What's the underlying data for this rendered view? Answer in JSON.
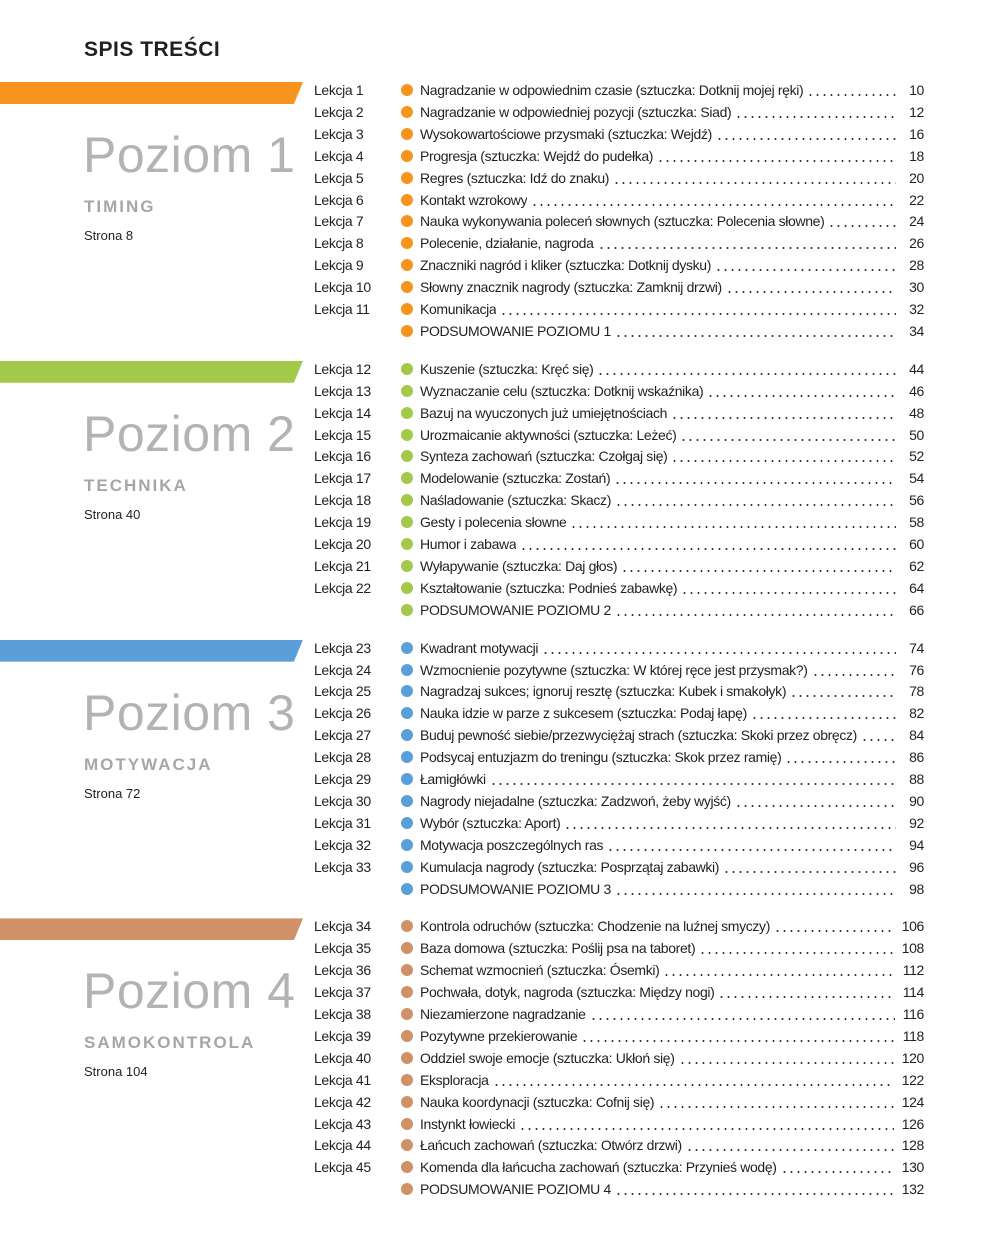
{
  "title": "SPIS TREŚCI",
  "sections": [
    {
      "level": "Poziom 1",
      "subtitle": "TIMING",
      "start": "Strona 8",
      "color": "#f7941d",
      "entries": [
        {
          "lesson": "Lekcja 1",
          "title": "Nagradzanie w odpowiednim czasie (sztuczka: Dotknij mojej ręki)",
          "page": 10
        },
        {
          "lesson": "Lekcja 2",
          "title": "Nagradzanie w odpowiedniej pozycji (sztuczka: Siad)",
          "page": 12
        },
        {
          "lesson": "Lekcja 3",
          "title": "Wysokowartościowe przysmaki (sztuczka: Wejdź)",
          "page": 16
        },
        {
          "lesson": "Lekcja 4",
          "title": "Progresja (sztuczka: Wejdź do pudełka)",
          "page": 18
        },
        {
          "lesson": "Lekcja 5",
          "title": "Regres (sztuczka: Idź do znaku)",
          "page": 20
        },
        {
          "lesson": "Lekcja 6",
          "title": "Kontakt wzrokowy",
          "page": 22
        },
        {
          "lesson": "Lekcja 7",
          "title": "Nauka wykonywania poleceń słownych (sztuczka: Polecenia słowne)",
          "page": 24
        },
        {
          "lesson": "Lekcja 8",
          "title": "Polecenie, działanie, nagroda",
          "page": 26
        },
        {
          "lesson": "Lekcja 9",
          "title": "Znaczniki nagród i kliker (sztuczka: Dotknij dysku)",
          "page": 28
        },
        {
          "lesson": "Lekcja 10",
          "title": "Słowny znacznik nagrody (sztuczka: Zamknij drzwi)",
          "page": 30
        },
        {
          "lesson": "Lekcja 11",
          "title": "Komunikacja",
          "page": 32
        },
        {
          "title": "PODSUMOWANIE POZIOMU 1",
          "page": 34
        }
      ]
    },
    {
      "level": "Poziom 2",
      "subtitle": "TECHNIKA",
      "start": "Strona 40",
      "color": "#a3c94a",
      "entries": [
        {
          "lesson": "Lekcja 12",
          "title": "Kuszenie (sztuczka: Kręć się)",
          "page": 44
        },
        {
          "lesson": "Lekcja 13",
          "title": "Wyznaczanie celu (sztuczka: Dotknij wskaźnika)",
          "page": 46
        },
        {
          "lesson": "Lekcja 14",
          "title": "Bazuj na wyuczonych już umiejętnościach",
          "page": 48
        },
        {
          "lesson": "Lekcja 15",
          "title": "Urozmaicanie aktywności (sztuczka: Leżeć)",
          "page": 50
        },
        {
          "lesson": "Lekcja 16",
          "title": "Synteza zachowań (sztuczka: Czołgaj się)",
          "page": 52
        },
        {
          "lesson": "Lekcja 17",
          "title": "Modelowanie (sztuczka: Zostań)",
          "page": 54
        },
        {
          "lesson": "Lekcja 18",
          "title": "Naśladowanie (sztuczka: Skacz)",
          "page": 56
        },
        {
          "lesson": "Lekcja 19",
          "title": "Gesty i polecenia słowne",
          "page": 58
        },
        {
          "lesson": "Lekcja 20",
          "title": "Humor i zabawa",
          "page": 60
        },
        {
          "lesson": "Lekcja 21",
          "title": "Wyłapywanie (sztuczka: Daj głos)",
          "page": 62
        },
        {
          "lesson": "Lekcja 22",
          "title": "Kształtowanie (sztuczka: Podnieś zabawkę)",
          "page": 64
        },
        {
          "title": "PODSUMOWANIE POZIOMU 2",
          "page": 66
        }
      ]
    },
    {
      "level": "Poziom 3",
      "subtitle": "MOTYWACJA",
      "start": "Strona 72",
      "color": "#5b9fd8",
      "entries": [
        {
          "lesson": "Lekcja 23",
          "title": "Kwadrant motywacji",
          "page": 74
        },
        {
          "lesson": "Lekcja 24",
          "title": "Wzmocnienie pozytywne (sztuczka: W której ręce jest przysmak?)",
          "page": 76
        },
        {
          "lesson": "Lekcja 25",
          "title": "Nagradzaj sukces; ignoruj resztę (sztuczka: Kubek i smakołyk)",
          "page": 78
        },
        {
          "lesson": "Lekcja 26",
          "title": "Nauka idzie w parze z sukcesem (sztuczka: Podaj łapę)",
          "page": 82
        },
        {
          "lesson": "Lekcja 27",
          "title": "Buduj pewność siebie/przezwyciężaj strach (sztuczka: Skoki przez obręcz)",
          "page": 84
        },
        {
          "lesson": "Lekcja 28",
          "title": "Podsycaj entuzjazm do treningu (sztuczka: Skok przez ramię)",
          "page": 86
        },
        {
          "lesson": "Lekcja 29",
          "title": "Łamigłówki",
          "page": 88
        },
        {
          "lesson": "Lekcja 30",
          "title": "Nagrody niejadalne (sztuczka: Zadzwoń, żeby wyjść)",
          "page": 90
        },
        {
          "lesson": "Lekcja 31",
          "title": "Wybór (sztuczka: Aport)",
          "page": 92
        },
        {
          "lesson": "Lekcja 32",
          "title": "Motywacja poszczególnych ras",
          "page": 94
        },
        {
          "lesson": "Lekcja 33",
          "title": "Kumulacja nagrody (sztuczka: Posprzątaj zabawki)",
          "page": 96
        },
        {
          "title": "PODSUMOWANIE POZIOMU 3",
          "page": 98
        }
      ]
    },
    {
      "level": "Poziom 4",
      "subtitle": "SAMOKONTROLA",
      "start": "Strona 104",
      "color": "#cf9166",
      "entries": [
        {
          "lesson": "Lekcja 34",
          "title": "Kontrola odruchów (sztuczka: Chodzenie na luźnej smyczy)",
          "page": 106
        },
        {
          "lesson": "Lekcja 35",
          "title": "Baza domowa (sztuczka: Poślij psa na taboret)",
          "page": 108
        },
        {
          "lesson": "Lekcja 36",
          "title": "Schemat wzmocnień (sztuczka: Ósemki)",
          "page": 112
        },
        {
          "lesson": "Lekcja 37",
          "title": "Pochwała, dotyk, nagroda (sztuczka: Między nogi)",
          "page": 114
        },
        {
          "lesson": "Lekcja 38",
          "title": "Niezamierzone nagradzanie",
          "page": 116
        },
        {
          "lesson": "Lekcja 39",
          "title": "Pozytywne przekierowanie",
          "page": 118
        },
        {
          "lesson": "Lekcja 40",
          "title": "Oddziel swoje emocje (sztuczka: Ukłoń się)",
          "page": 120
        },
        {
          "lesson": "Lekcja 41",
          "title": "Eksploracja",
          "page": 122
        },
        {
          "lesson": "Lekcja 42",
          "title": "Nauka koordynacji (sztuczka: Cofnij się)",
          "page": 124
        },
        {
          "lesson": "Lekcja 43",
          "title": "Instynkt łowiecki",
          "page": 126
        },
        {
          "lesson": "Lekcja 44",
          "title": "Łańcuch zachowań (sztuczka: Otwórz drzwi)",
          "page": 128
        },
        {
          "lesson": "Lekcja 45",
          "title": "Komenda dla łańcucha zachowań (sztuczka: Przynieś wodę)",
          "page": 130
        },
        {
          "title": "PODSUMOWANIE POZIOMU 4",
          "page": 132
        }
      ]
    }
  ]
}
